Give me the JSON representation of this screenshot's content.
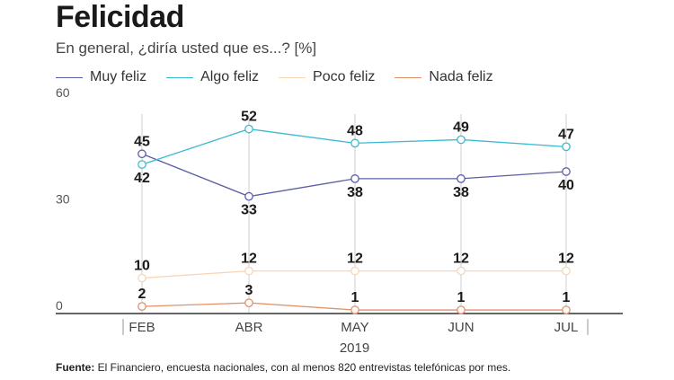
{
  "chart_data": {
    "type": "line",
    "title": "Felicidad",
    "subtitle": "En general, ¿diría usted que es...? [%]",
    "categories": [
      "FEB",
      "ABR",
      "MAY",
      "JUN",
      "JUL"
    ],
    "xlabel": "2019",
    "ylabel": "",
    "ylim": [
      0,
      60
    ],
    "yticks": [
      "60",
      "30",
      "0"
    ],
    "series": [
      {
        "name": "Muy feliz",
        "color": "#5b5ea6",
        "values": [
          45,
          33,
          38,
          38,
          40
        ],
        "labels": [
          "45",
          "33",
          "38",
          "38",
          "40"
        ],
        "label_pos": [
          "above",
          "below",
          "below",
          "below",
          "below"
        ]
      },
      {
        "name": "Algo feliz",
        "color": "#3bbad4",
        "values": [
          42,
          52,
          48,
          49,
          47
        ],
        "labels": [
          "42",
          "52",
          "48",
          "49",
          "47"
        ],
        "label_pos": [
          "below",
          "above",
          "above",
          "above",
          "above"
        ]
      },
      {
        "name": "Poco feliz",
        "color": "#f7d6b5",
        "values": [
          10,
          12,
          12,
          12,
          12
        ],
        "labels": [
          "10",
          "12",
          "12",
          "12",
          "12"
        ],
        "label_pos": [
          "above",
          "above",
          "above",
          "above",
          "above"
        ]
      },
      {
        "name": "Nada feliz",
        "color": "#e0916a",
        "values": [
          2,
          3,
          1,
          1,
          1
        ],
        "labels": [
          "2",
          "3",
          "1",
          "1",
          "1"
        ],
        "label_pos": [
          "above",
          "above",
          "above",
          "above",
          "above"
        ]
      }
    ]
  },
  "footer": {
    "source_label": "Fuente:",
    "source_text": " El Financiero, encuesta nacionales, con al menos 820 entrevistas telefónicas por mes."
  }
}
